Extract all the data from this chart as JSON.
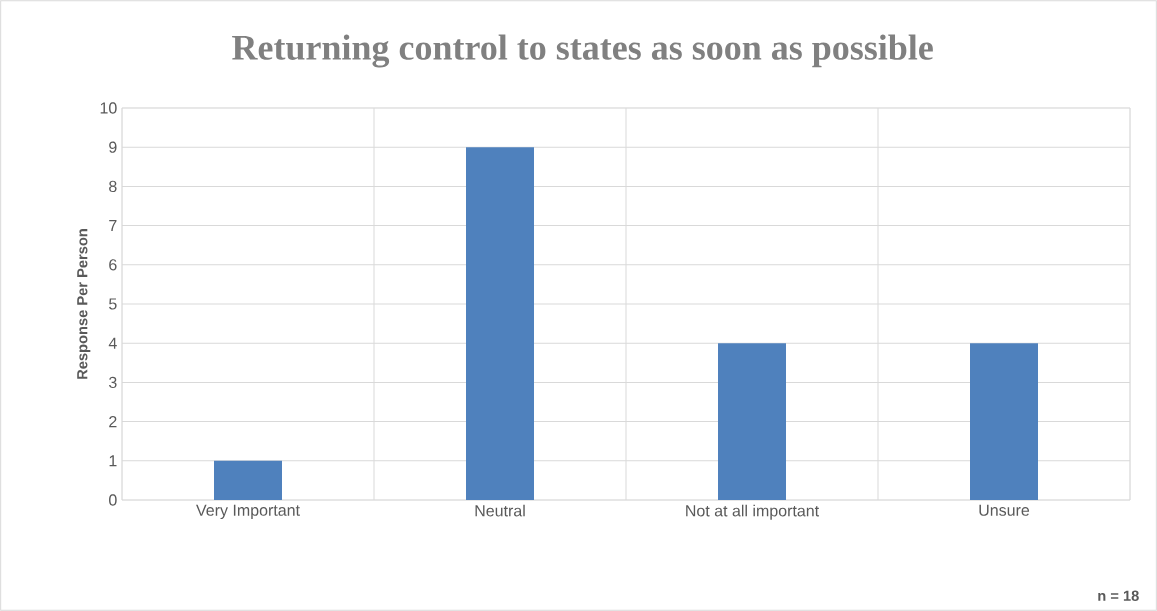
{
  "chart_data": {
    "type": "bar",
    "title": "Returning control to states as soon as possible",
    "ylabel": "Response Per Person",
    "categories": [
      "Very Important",
      "Neutral",
      "Not at all important",
      "Unsure"
    ],
    "values": [
      1,
      9,
      4,
      4
    ],
    "color": "#4f81bd",
    "ylim": [
      0,
      10
    ],
    "yticks": [
      0,
      1,
      2,
      3,
      4,
      5,
      6,
      7,
      8,
      9,
      10
    ],
    "grid": true,
    "annotations": [
      "n = 18"
    ]
  }
}
